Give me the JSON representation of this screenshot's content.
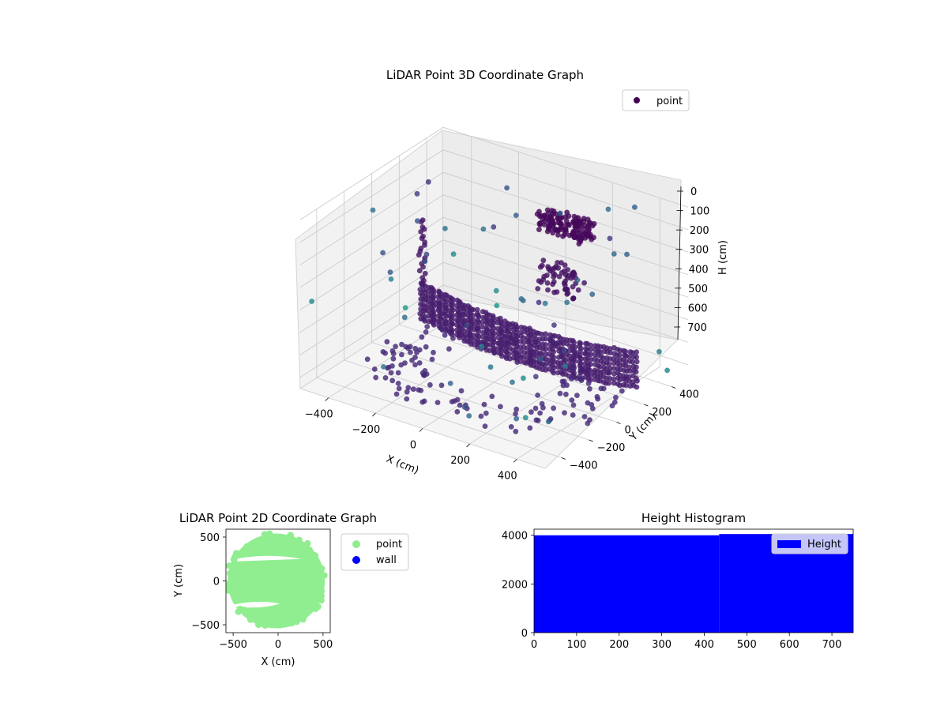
{
  "chart_data": [
    {
      "type": "scatter3d",
      "title": "LiDAR Point 3D Coordinate Graph",
      "xlabel": "X (cm)",
      "ylabel": "Y (cm)",
      "zlabel": "H (cm)",
      "xticks": [
        "−400",
        "−200",
        "0",
        "200",
        "400"
      ],
      "yticks": [
        "−400",
        "−200",
        "0",
        "200",
        "400"
      ],
      "zticks": [
        "0",
        "100",
        "200",
        "300",
        "400",
        "500",
        "600",
        "700"
      ],
      "zlim": [
        0,
        750
      ],
      "z_inverted": true,
      "colormap": "viridis-by-height",
      "grid": true,
      "legend": {
        "position": "top-right",
        "entries": [
          {
            "label": "point",
            "color": "#440154"
          }
        ]
      }
    },
    {
      "type": "scatter",
      "title": "LiDAR Point 2D Coordinate Graph",
      "xlabel": "X (cm)",
      "ylabel": "Y (cm)",
      "xticks": [
        "−500",
        "0",
        "500"
      ],
      "yticks": [
        "−500",
        "0",
        "500"
      ],
      "xlim": [
        -580,
        580
      ],
      "ylim": [
        -590,
        590
      ],
      "legend": {
        "position": "right-outside",
        "entries": [
          {
            "label": "point",
            "color": "#90ee90"
          },
          {
            "label": "wall",
            "color": "#0000ff"
          }
        ]
      },
      "series": [
        {
          "name": "point",
          "color": "#90ee90",
          "shape": "disc-cloud",
          "radius": 540
        },
        {
          "name": "wall",
          "color": "#0000ff",
          "values": []
        }
      ]
    },
    {
      "type": "bar",
      "title": "Height Histogram",
      "xticks": [
        "0",
        "100",
        "200",
        "300",
        "400",
        "500",
        "600",
        "700"
      ],
      "yticks": [
        "0",
        "2000",
        "4000"
      ],
      "xlim": [
        0,
        750
      ],
      "ylim": [
        0,
        4250
      ],
      "legend": {
        "position": "top-right",
        "entries": [
          {
            "label": "Height",
            "color": "#0000ff"
          }
        ]
      },
      "series": [
        {
          "name": "Height",
          "color": "#0000ff",
          "bins": [
            {
              "from": 0,
              "to": 435,
              "count": 4000
            },
            {
              "from": 435,
              "to": 750,
              "count": 4050
            }
          ]
        }
      ]
    }
  ]
}
